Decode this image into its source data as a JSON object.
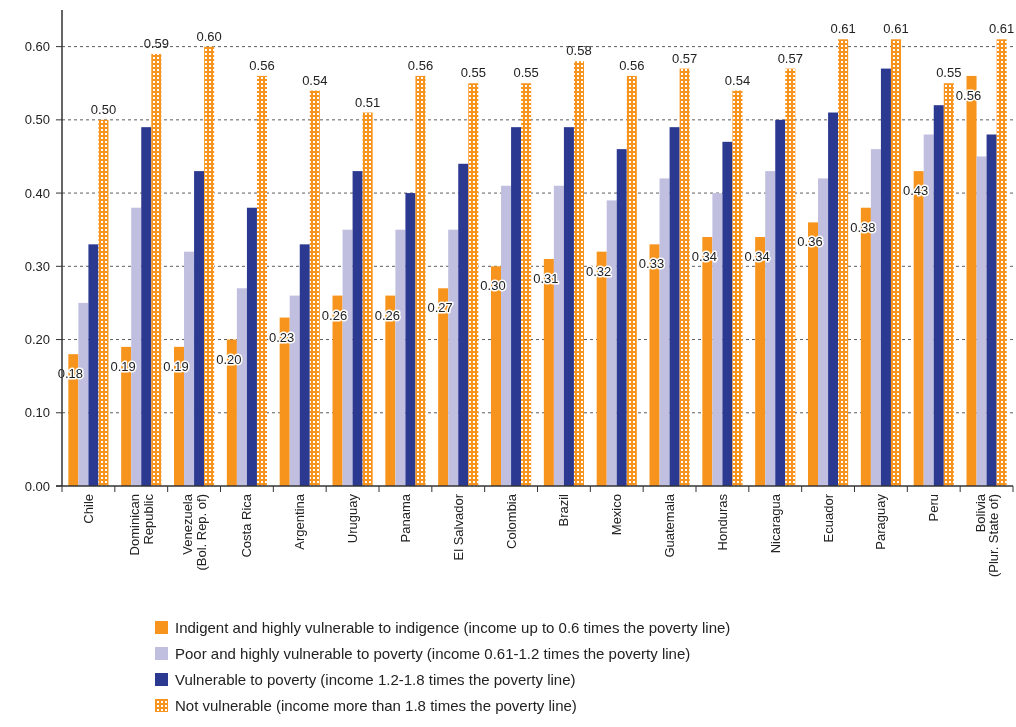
{
  "chart_data": {
    "type": "bar",
    "categories": [
      "Chile",
      "Dominican Republic",
      "Venezuela (Bol. Rep. of)",
      "Costa Rica",
      "Argentina",
      "Uruguay",
      "Panama",
      "El Salvador",
      "Colombia",
      "Brazil",
      "Mexico",
      "Guatemala",
      "Honduras",
      "Nicaragua",
      "Ecuador",
      "Paraguay",
      "Peru",
      "Bolivia (Plur. State of)"
    ],
    "series": [
      {
        "name": "Indigent and highly vulnerable to indigence (income up to 0.6 times the poverty line)",
        "color": "#f7941d",
        "values": [
          0.18,
          0.19,
          0.19,
          0.2,
          0.23,
          0.26,
          0.26,
          0.27,
          0.3,
          0.31,
          0.32,
          0.33,
          0.34,
          0.34,
          0.36,
          0.38,
          0.43,
          0.56
        ],
        "value_labels": [
          "0.18",
          "0.19",
          "0.19",
          "0.20",
          "0.23",
          "0.26",
          "0.26",
          "0.27",
          "0.30",
          "0.31",
          "0.32",
          "0.33",
          "0.34",
          "0.34",
          "0.36",
          "0.38",
          "0.43",
          "0.56"
        ]
      },
      {
        "name": "Poor and highly vulnerable to poverty (income 0.61-1.2 times the poverty line)",
        "color": "#c0bfdf",
        "values": [
          0.25,
          0.38,
          0.32,
          0.27,
          0.26,
          0.35,
          0.35,
          0.35,
          0.41,
          0.41,
          0.39,
          0.42,
          0.4,
          0.43,
          0.42,
          0.46,
          0.48,
          0.45
        ]
      },
      {
        "name": "Vulnerable to poverty (income 1.2-1.8 times the poverty line)",
        "color": "#2b3990",
        "values": [
          0.33,
          0.49,
          0.43,
          0.38,
          0.33,
          0.43,
          0.4,
          0.44,
          0.49,
          0.49,
          0.46,
          0.49,
          0.47,
          0.5,
          0.51,
          0.57,
          0.52,
          0.48
        ]
      },
      {
        "name": "Not vulnerable (income more than 1.8 times the poverty line)",
        "color": "#f7941d",
        "values": [
          0.5,
          0.59,
          0.6,
          0.56,
          0.54,
          0.51,
          0.56,
          0.55,
          0.55,
          0.58,
          0.56,
          0.57,
          0.54,
          0.57,
          0.61,
          0.61,
          0.55,
          0.61
        ],
        "value_labels": [
          "0.50",
          "0.59",
          "0.60",
          "0.56",
          "0.54",
          "0.51",
          "0.56",
          "0.55",
          "0.55",
          "0.58",
          "0.56",
          "0.57",
          "0.54",
          "0.57",
          "0.61",
          "0.61",
          "0.55",
          "0.61"
        ]
      }
    ],
    "ylim": [
      0,
      0.65
    ],
    "yticks": [
      {
        "value": 0,
        "label": "0.00"
      },
      {
        "value": 0.1,
        "label": "0.10"
      },
      {
        "value": 0.2,
        "label": "0.20"
      },
      {
        "value": 0.3,
        "label": "0.30"
      },
      {
        "value": 0.4,
        "label": "0.40"
      },
      {
        "value": 0.5,
        "label": "0.50"
      },
      {
        "value": 0.6,
        "label": "0.60"
      }
    ],
    "grid": "y",
    "legend": "bottom"
  }
}
